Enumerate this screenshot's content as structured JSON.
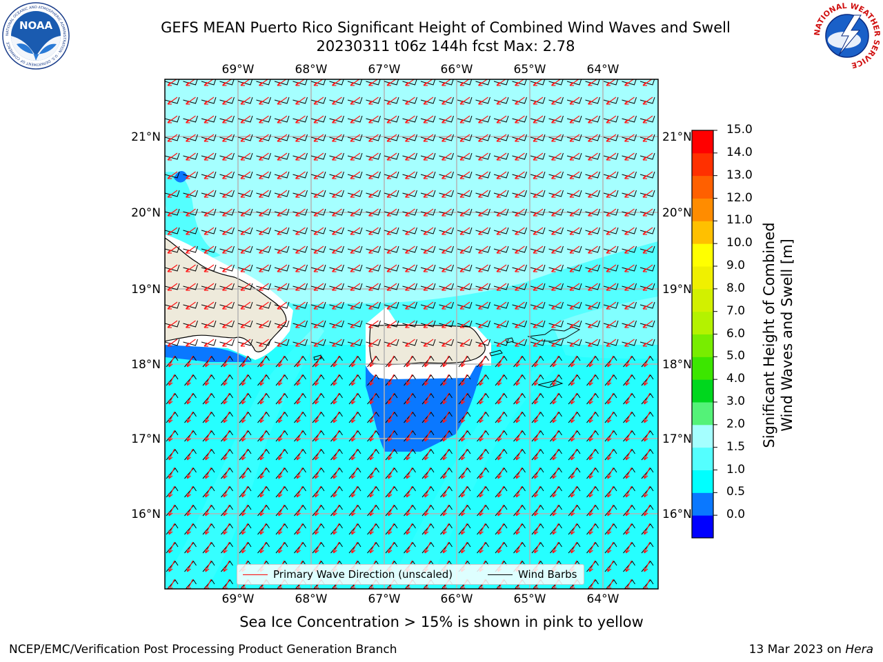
{
  "header": {
    "title_line1": "GEFS MEAN Puerto Rico Significant Height of Combined Wind Waves and Swell",
    "title_line2": "20230311 t06z 144h fcst   Max: 2.78"
  },
  "logos": {
    "noaa": {
      "icon": "noaa-logo",
      "text": "NOAA",
      "ring_text": "NATIONAL OCEANIC AND ATMOSPHERIC ADMINISTRATION · U.S. DEPARTMENT OF COMMERCE"
    },
    "nws": {
      "icon": "nws-logo",
      "ring_text": "NATIONAL WEATHER SERVICE"
    }
  },
  "map": {
    "lon_labels": [
      "69°W",
      "68°W",
      "67°W",
      "66°W",
      "65°W",
      "64°W"
    ],
    "lat_labels": [
      "21°N",
      "20°N",
      "19°N",
      "18°N",
      "17°N",
      "16°N"
    ],
    "legend": {
      "wave_direction_label": "Primary Wave Direction (unscaled)",
      "wind_barbs_label": "Wind Barbs",
      "wave_direction_color": "#ff0000",
      "wind_barbs_color": "#000000"
    },
    "land_color": "#eeeadb",
    "grid_color": "#b3b3b3"
  },
  "colorbar": {
    "title_line1": "Significant Height of Combined",
    "title_line2": "Wind Waves and Swell [m]",
    "tick_labels": [
      "15.0",
      "14.0",
      "13.0",
      "12.0",
      "11.0",
      "10.0",
      "9.0",
      "8.0",
      "7.0",
      "6.0",
      "5.0",
      "4.0",
      "3.0",
      "2.0",
      "1.5",
      "1.0",
      "0.5",
      "0.0"
    ],
    "bin_colors": [
      "#0000ff",
      "#0a78ff",
      "#00ffff",
      "#54ffff",
      "#a5ffff",
      "#54f278",
      "#00d71e",
      "#3ce600",
      "#78ed00",
      "#b4f200",
      "#d2f000",
      "#f0f000",
      "#ffff00",
      "#ffc000",
      "#ff8c00",
      "#ff6000",
      "#ff3000",
      "#ff0000"
    ]
  },
  "footer": {
    "note": "Sea Ice Concentration > 15% is shown in pink to yellow",
    "credit": "NCEP/EMC/Verification Post Processing Product Generation Branch",
    "date_prefix": "13 Mar 2023 on ",
    "machine": "Hera"
  }
}
